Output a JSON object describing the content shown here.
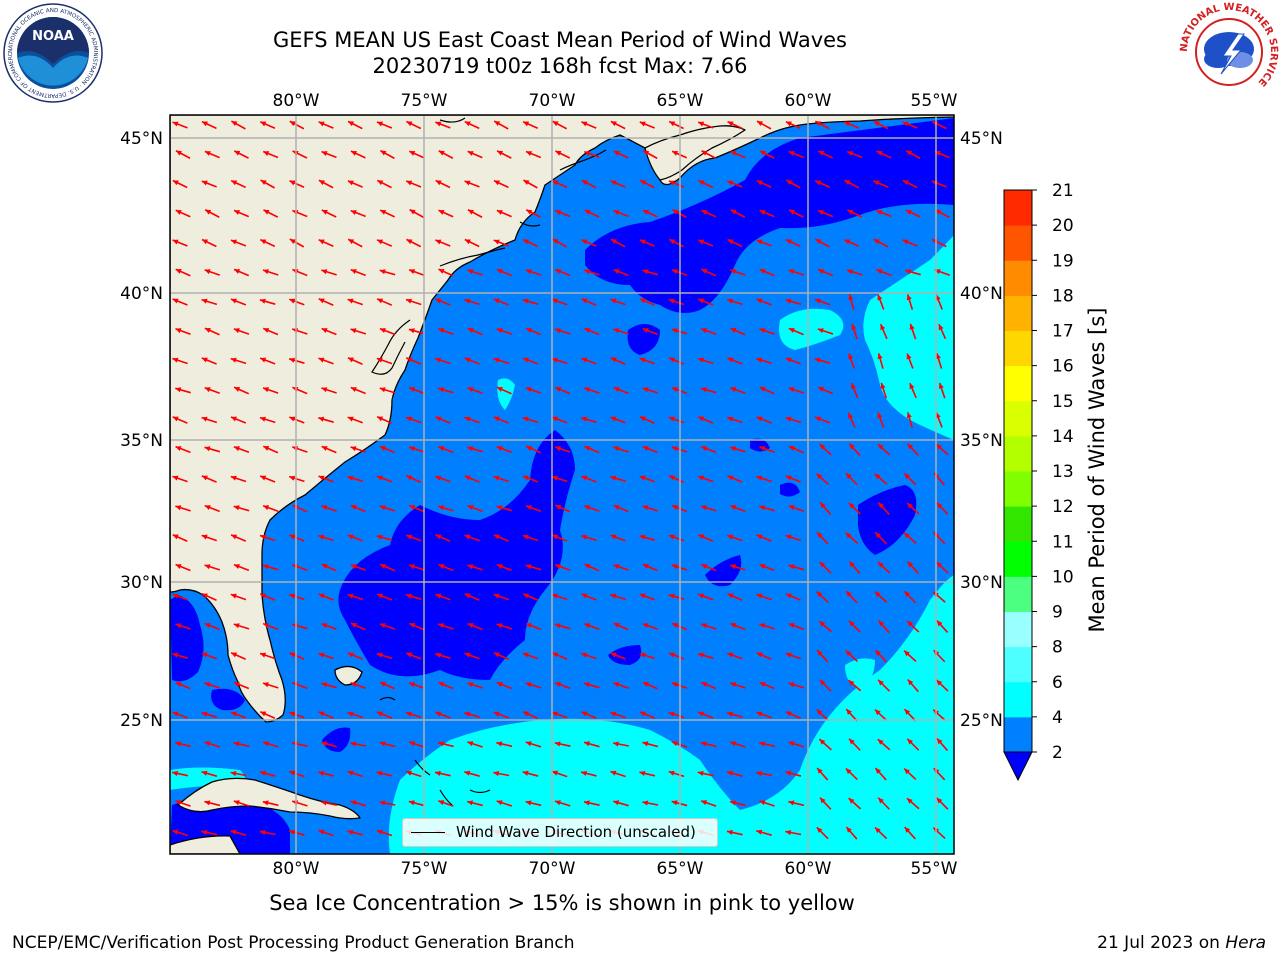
{
  "title": {
    "line1": "GEFS MEAN US East Coast Mean Period of Wind Waves",
    "line2": "20230719 t00z 168h fcst   Max: 7.66"
  },
  "map": {
    "lon_ticks": [
      "80°W",
      "75°W",
      "70°W",
      "65°W",
      "60°W",
      "55°W"
    ],
    "lat_ticks": [
      "45°N",
      "40°N",
      "35°N",
      "30°N",
      "25°N"
    ],
    "legend_label": "Wind Wave Direction (unscaled)",
    "colors": {
      "land": "#efedde",
      "band_2_4": "#0080ff",
      "band_below_2": "#0000ff",
      "band_4_6": "#00ffff",
      "arrow": "#ff0000",
      "grid": "#b0b0b0"
    },
    "layers": {
      "land": "land-icon",
      "coastline": "coastline-icon",
      "arrows": "wind-arrow-icon"
    }
  },
  "colorbar": {
    "label": "Mean Period of Wind Waves [s]",
    "ticks": [
      "2",
      "4",
      "6",
      "8",
      "9",
      "10",
      "11",
      "12",
      "13",
      "14",
      "15",
      "16",
      "17",
      "18",
      "19",
      "20",
      "21"
    ],
    "colors": [
      "#0080ff",
      "#00ffff",
      "#4dffff",
      "#99ffff",
      "#4dff80",
      "#00ff00",
      "#33e600",
      "#80ff00",
      "#b3ff00",
      "#d9ff00",
      "#ffff00",
      "#ffd700",
      "#ffb300",
      "#ff8c00",
      "#ff5500",
      "#ff2a00",
      "#ff0000"
    ],
    "under_color": "#0000ff"
  },
  "ice_note": "Sea Ice Concentration > 15% is shown in pink to yellow",
  "footer": {
    "left": "NCEP/EMC/Verification Post Processing Product Generation Branch",
    "right_date": "21 Jul 2023 on ",
    "right_host": "Hera"
  },
  "logos": {
    "noaa_text": "NOAA",
    "noaa_ring": "NATIONAL OCEANIC AND ATMOSPHERIC ADMINISTRATION · U.S. DEPARTMENT OF COMMERCE",
    "nws_ring": "NATIONAL WEATHER SERVICE"
  }
}
